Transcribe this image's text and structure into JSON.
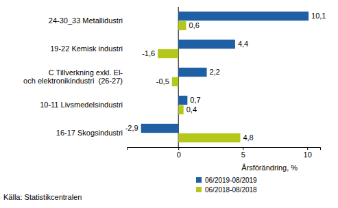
{
  "chart_data": {
    "type": "bar",
    "orientation": "horizontal",
    "categories": [
      "24-30_33 Metallidustri",
      "19-22 Kemisk industri",
      "C Tillverkning exkl. El-\noch elektronikindustri  (26-27)",
      "10-11 Livsmedelsindustri",
      "16-17 Skogsindustri"
    ],
    "series": [
      {
        "name": "06/2019-08/2019",
        "color": "#1f5fa3",
        "values": [
          10.1,
          4.4,
          2.2,
          0.7,
          -2.9
        ],
        "value_labels": [
          "10,1",
          "4,4",
          "2,2",
          "0,7",
          "-2,9"
        ]
      },
      {
        "name": "06/2018-08/2018",
        "color": "#b3c81a",
        "values": [
          0.6,
          -1.6,
          -0.5,
          0.4,
          4.8
        ],
        "value_labels": [
          "0,6",
          "-1,6",
          "-0,5",
          "0,4",
          "4,8"
        ]
      }
    ],
    "x_label": "Årsförändring, %",
    "xlim": [
      -4,
      11
    ],
    "xticks": [
      0,
      5,
      10
    ],
    "grid": false,
    "data_labels": true,
    "legend": "bottom",
    "annotations": [
      "Källa: Statistikcentralen"
    ]
  }
}
